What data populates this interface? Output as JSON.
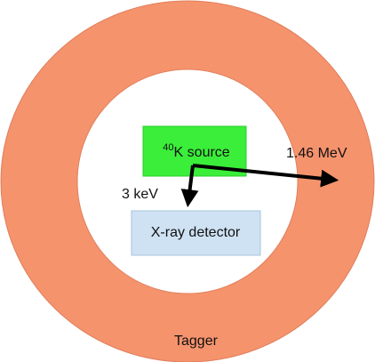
{
  "nodes": [
    {
      "id": "source",
      "mass_number": "40",
      "label": "K source"
    },
    {
      "id": "detector",
      "label": "X-ray detector"
    },
    {
      "id": "tagger",
      "label": "Tagger"
    }
  ],
  "edges": [
    {
      "from": "source",
      "to": "tagger",
      "label": "1.46 MeV"
    },
    {
      "from": "source",
      "to": "detector",
      "label": "3 keV"
    }
  ]
}
